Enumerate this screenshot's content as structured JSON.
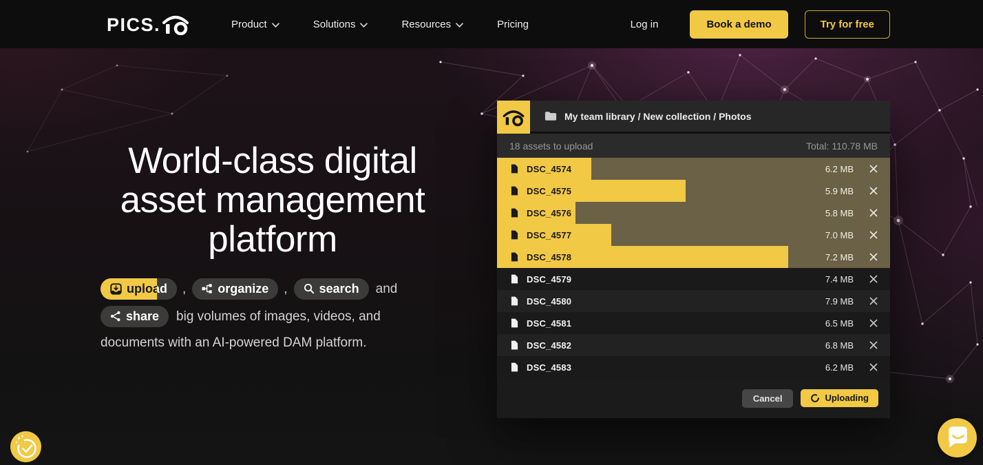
{
  "nav": {
    "logo_text": "PICS.",
    "items": [
      {
        "label": "Product",
        "has_dropdown": true
      },
      {
        "label": "Solutions",
        "has_dropdown": true
      },
      {
        "label": "Resources",
        "has_dropdown": true
      },
      {
        "label": "Pricing",
        "has_dropdown": false
      }
    ],
    "login_label": "Log in",
    "book_demo_label": "Book a demo",
    "try_free_label": "Try for free"
  },
  "hero": {
    "title_lines": [
      "World-class digital",
      "asset management",
      "platform"
    ],
    "tags": {
      "upload": "upload",
      "organize": "organize",
      "search": "search",
      "share": "share"
    },
    "separator": ",",
    "conjunction": "and",
    "description_line1": "big volumes of images, videos, and",
    "description_line2": "documents with an AI-powered DAM platform.",
    "upload_tag_progress_percent": 74
  },
  "upload_panel": {
    "breadcrumb": "My team library / New collection / Photos",
    "assets_label": "18 assets to upload",
    "total_label": "Total: 110.78 MB",
    "files": [
      {
        "name": "DSC_4574",
        "size": "6.2 MB",
        "progress": 24,
        "uploading": true
      },
      {
        "name": "DSC_4575",
        "size": "5.9 MB",
        "progress": 48,
        "uploading": true
      },
      {
        "name": "DSC_4576",
        "size": "5.8 MB",
        "progress": 20,
        "uploading": true
      },
      {
        "name": "DSC_4577",
        "size": "7.0 MB",
        "progress": 29,
        "uploading": true
      },
      {
        "name": "DSC_4578",
        "size": "7.2 MB",
        "progress": 74,
        "uploading": true
      },
      {
        "name": "DSC_4579",
        "size": "7.4 MB",
        "progress": 0,
        "uploading": false
      },
      {
        "name": "DSC_4580",
        "size": "7.9 MB",
        "progress": 0,
        "uploading": false
      },
      {
        "name": "DSC_4581",
        "size": "6.5 MB",
        "progress": 0,
        "uploading": false
      },
      {
        "name": "DSC_4582",
        "size": "6.8 MB",
        "progress": 0,
        "uploading": false
      },
      {
        "name": "DSC_4583",
        "size": "6.2 MB",
        "progress": 0,
        "uploading": false
      }
    ],
    "cancel_label": "Cancel",
    "uploading_label": "Uploading"
  },
  "colors": {
    "accent_yellow": "#f1c945",
    "nav_bg": "#0d0d0d",
    "uploading_row_bg": "#6a6146",
    "progress_bar": "#f1c945",
    "hero_purple_glow": "#702e62"
  }
}
